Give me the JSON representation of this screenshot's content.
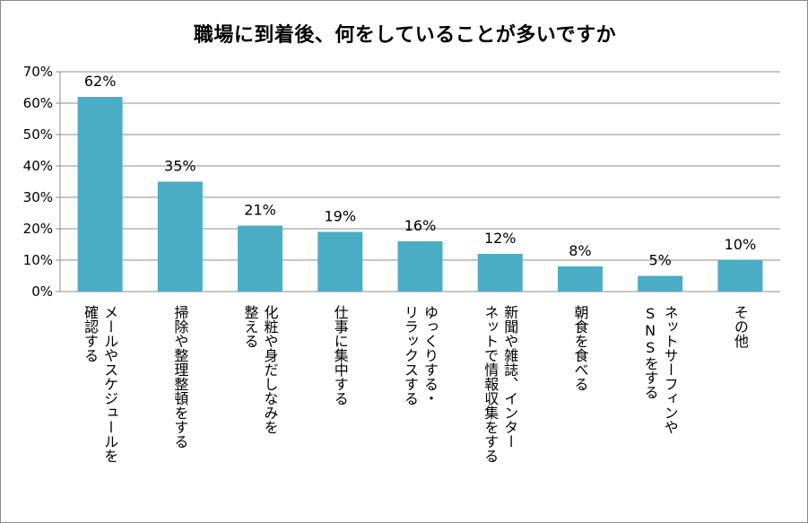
{
  "chart_data": {
    "type": "bar",
    "title": "職場に到着後、何をしていることが多いですか",
    "categories": [
      [
        "メールやスケジュールを",
        "確認する"
      ],
      [
        "掃除や整理整頓をする"
      ],
      [
        "化粧や身だしなみを",
        "整える"
      ],
      [
        "仕事に集中する"
      ],
      [
        "ゆっくりする・",
        "リラックスする"
      ],
      [
        "新聞や雑誌、インター",
        "ネットで情報収集をする"
      ],
      [
        "朝食を食べる"
      ],
      [
        "ネットサーフィンや",
        "SNSをする"
      ],
      [
        "その他"
      ]
    ],
    "values": [
      62,
      35,
      21,
      19,
      16,
      12,
      8,
      5,
      10
    ],
    "value_labels": [
      "62%",
      "35%",
      "21%",
      "19%",
      "16%",
      "12%",
      "8%",
      "5%",
      "10%"
    ],
    "ylim": [
      0,
      70
    ],
    "yticks": [
      "0%",
      "10%",
      "20%",
      "30%",
      "40%",
      "50%",
      "60%",
      "70%"
    ],
    "grid": true,
    "bar_color": "#4bacc6"
  }
}
